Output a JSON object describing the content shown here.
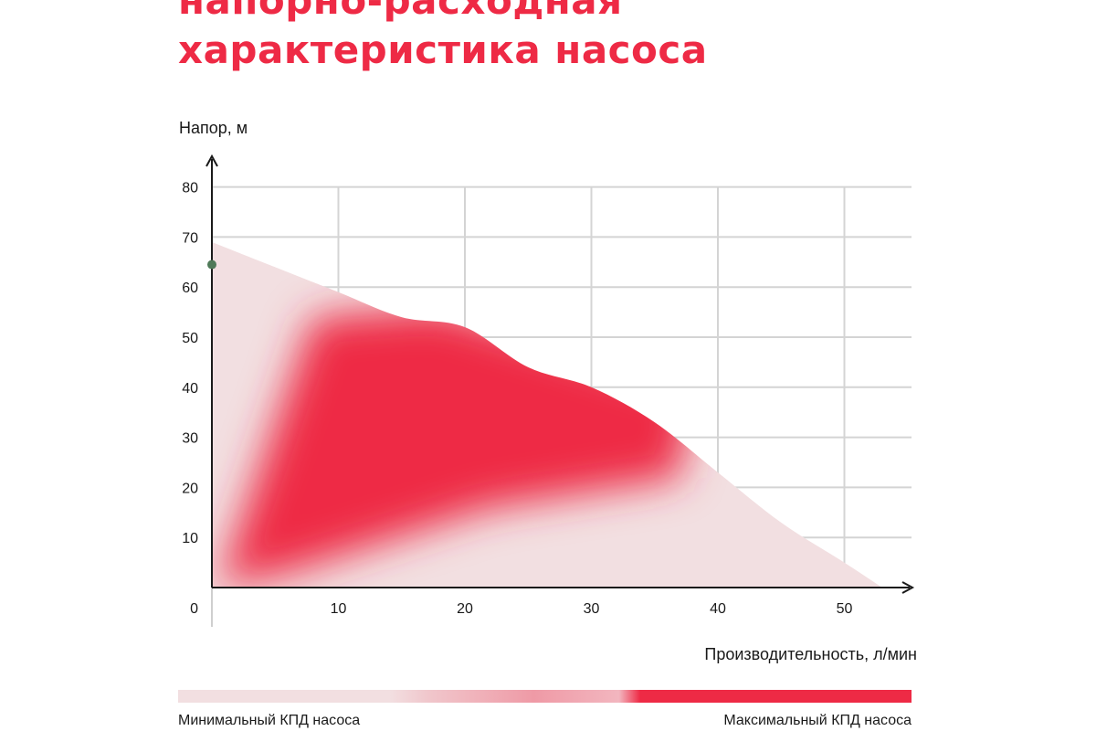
{
  "title": [
    "напорно-расходная",
    "характеристика насоса"
  ],
  "chart_data": {
    "type": "area",
    "ylabel": "Напор, м",
    "xlabel": "Производительность, л/мин",
    "xlim": [
      0,
      55
    ],
    "ylim": [
      0,
      80
    ],
    "origin_label": "0",
    "x_ticks": [
      10,
      20,
      30,
      40,
      50
    ],
    "y_ticks": [
      10,
      20,
      30,
      40,
      50,
      60,
      70,
      80
    ],
    "grid": true,
    "series": [
      {
        "x": [
          0,
          5,
          10,
          15,
          20,
          25,
          30,
          35,
          40,
          45,
          50,
          53
        ],
        "y": [
          69,
          64,
          59,
          54,
          52,
          44,
          40,
          33,
          23,
          13,
          5,
          0
        ]
      }
    ],
    "marker": {
      "x": 0,
      "y": 64.5
    },
    "colors": {
      "min_efficiency": "#f2dfe1",
      "mid_efficiency": "#ef9aa6",
      "max_efficiency": "#ee2a45",
      "axis": "#1a1a1a",
      "grid": "#d4d4d4",
      "marker": "#4f7a58",
      "title": "#ee2a45"
    }
  },
  "legend": {
    "min_label": "Минимальный КПД насоса",
    "max_label": "Максимальный КПД насоса"
  }
}
